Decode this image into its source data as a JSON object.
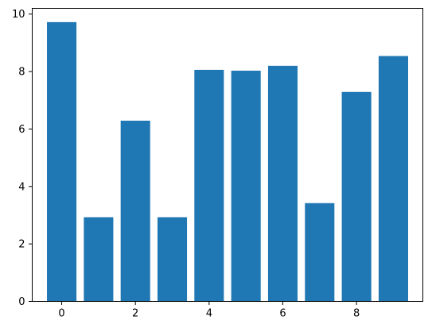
{
  "chart_data": {
    "type": "bar",
    "categories": [
      0,
      1,
      2,
      3,
      4,
      5,
      6,
      7,
      8,
      9
    ],
    "values": [
      9.72,
      2.93,
      6.29,
      2.93,
      8.06,
      8.03,
      8.2,
      3.42,
      7.29,
      8.54
    ],
    "bar_width": 0.8,
    "xlim": [
      -0.8,
      9.8
    ],
    "ylim": [
      0,
      10.2
    ],
    "xticks": [
      0,
      2,
      4,
      6,
      8
    ],
    "yticks": [
      0,
      2,
      4,
      6,
      8,
      10
    ],
    "title": "",
    "xlabel": "",
    "ylabel": "",
    "grid": false,
    "legend": "none",
    "colors": {
      "bar": "#1f77b4",
      "axis": "#000000",
      "background": "#ffffff"
    }
  }
}
